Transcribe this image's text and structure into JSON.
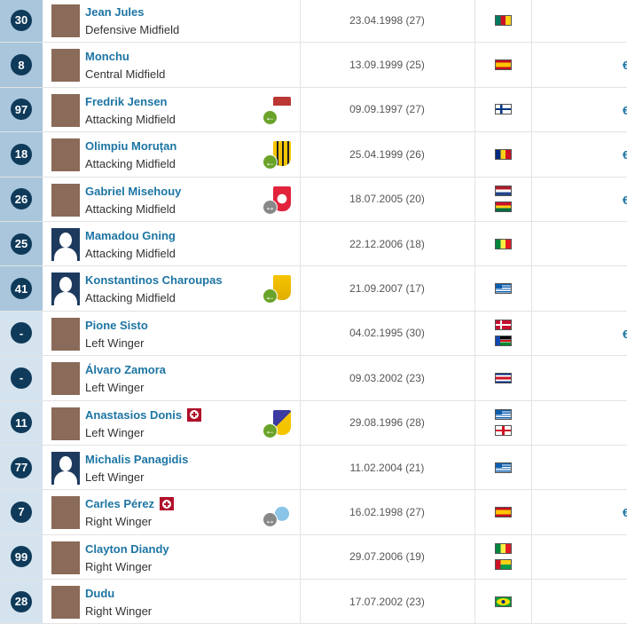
{
  "colors": {
    "number_cell_dark": "#a9c6dc",
    "number_cell_light": "#d4e3ee",
    "badge": "#0f3a5a",
    "link": "#1d75a3",
    "injury": "#b0102a",
    "loan_in": "#6aa329",
    "swap": "#888888"
  },
  "players": [
    {
      "number": "30",
      "name": "Jean Jules",
      "position": "Defensive Midfield",
      "dob": "23.04.1998 (27)",
      "flags": [
        "cameroon"
      ],
      "photo": "photo",
      "club": null,
      "injury": false,
      "market_value": false,
      "shade": "dark"
    },
    {
      "number": "8",
      "name": "Monchu",
      "position": "Central Midfield",
      "dob": "13.09.1999 (25)",
      "flags": [
        "spain"
      ],
      "photo": "photo",
      "club": null,
      "injury": false,
      "market_value": true,
      "shade": "dark"
    },
    {
      "number": "97",
      "name": "Fredrik Jensen",
      "position": "Attacking Midfield",
      "dob": "09.09.1997 (27)",
      "flags": [
        "finland"
      ],
      "photo": "photo",
      "club": {
        "crest": "augsburg-crest",
        "arrow": "loan-in"
      },
      "injury": false,
      "market_value": true,
      "shade": "dark"
    },
    {
      "number": "18",
      "name": "Olimpiu Moruțan",
      "position": "Attacking Midfield",
      "dob": "25.04.1999 (26)",
      "flags": [
        "romania"
      ],
      "photo": "photo",
      "club": {
        "crest": "yellow-black-crest",
        "arrow": "loan-in"
      },
      "injury": false,
      "market_value": true,
      "shade": "dark"
    },
    {
      "number": "26",
      "name": "Gabriel Misehouy",
      "position": "Attacking Midfield",
      "dob": "18.07.2005 (20)",
      "flags": [
        "netherlands",
        "ghana"
      ],
      "photo": "photo",
      "club": {
        "crest": "girona-crest",
        "arrow": "swap"
      },
      "injury": false,
      "market_value": true,
      "shade": "dark"
    },
    {
      "number": "25",
      "name": "Mamadou Gning",
      "position": "Attacking Midfield",
      "dob": "22.12.2006 (18)",
      "flags": [
        "senegal"
      ],
      "photo": "silhouette",
      "club": null,
      "injury": false,
      "market_value": false,
      "shade": "dark"
    },
    {
      "number": "41",
      "name": "Konstantinos Charoupas",
      "position": "Attacking Midfield",
      "dob": "21.09.2007 (17)",
      "flags": [
        "greece"
      ],
      "photo": "silhouette",
      "club": {
        "crest": "aris-crest",
        "arrow": "loan-in"
      },
      "injury": false,
      "market_value": false,
      "shade": "dark"
    },
    {
      "number": "-",
      "name": "Pione Sisto",
      "position": "Left Winger",
      "dob": "04.02.1995 (30)",
      "flags": [
        "denmark",
        "south-sudan"
      ],
      "photo": "photo",
      "club": null,
      "injury": false,
      "market_value": true,
      "shade": "light"
    },
    {
      "number": "-",
      "name": "Álvaro Zamora",
      "position": "Left Winger",
      "dob": "09.03.2002 (23)",
      "flags": [
        "costa-rica"
      ],
      "photo": "photo",
      "club": null,
      "injury": false,
      "market_value": false,
      "shade": "light"
    },
    {
      "number": "11",
      "name": "Anastasios Donis",
      "position": "Left Winger",
      "dob": "29.08.1996 (28)",
      "flags": [
        "greece",
        "england"
      ],
      "photo": "photo",
      "club": {
        "crest": "apoel-crest",
        "arrow": "loan-in"
      },
      "injury": true,
      "market_value": false,
      "shade": "light"
    },
    {
      "number": "77",
      "name": "Michalis Panagidis",
      "position": "Left Winger",
      "dob": "11.02.2004 (21)",
      "flags": [
        "greece"
      ],
      "photo": "silhouette",
      "club": null,
      "injury": false,
      "market_value": false,
      "shade": "light"
    },
    {
      "number": "7",
      "name": "Carles Pérez",
      "position": "Right Winger",
      "dob": "16.02.1998 (27)",
      "flags": [
        "spain"
      ],
      "photo": "photo",
      "club": {
        "crest": "celta-crest",
        "arrow": "swap"
      },
      "injury": true,
      "market_value": true,
      "shade": "light"
    },
    {
      "number": "99",
      "name": "Clayton Diandy",
      "position": "Right Winger",
      "dob": "29.07.2006 (19)",
      "flags": [
        "senegal",
        "guinea-bissau"
      ],
      "photo": "photo",
      "club": null,
      "injury": false,
      "market_value": false,
      "shade": "light"
    },
    {
      "number": "28",
      "name": "Dudu",
      "position": "Right Winger",
      "dob": "17.07.2002 (23)",
      "flags": [
        "brazil"
      ],
      "photo": "photo",
      "club": null,
      "injury": false,
      "market_value": false,
      "shade": "light"
    }
  ]
}
